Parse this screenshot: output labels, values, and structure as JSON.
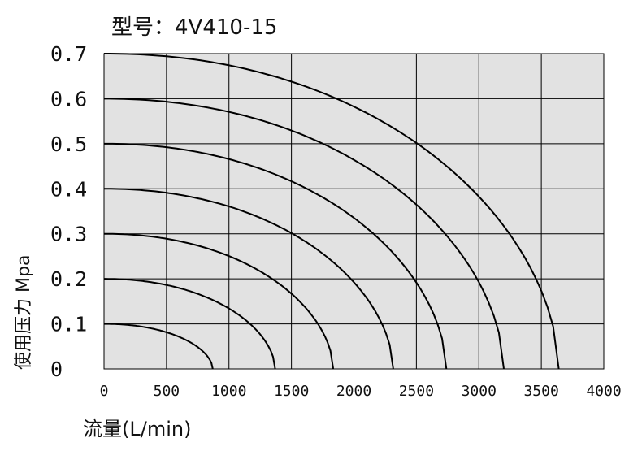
{
  "chart_data": {
    "type": "line",
    "title": "型号：4V410-15",
    "xlabel": "流量(L/min)",
    "ylabel": "使用压力 Mpa",
    "xlim": [
      0,
      4000
    ],
    "ylim": [
      0,
      0.7
    ],
    "x_ticks": [
      "0",
      "500",
      "1000",
      "1500",
      "2000",
      "2500",
      "3000",
      "3500",
      "4000"
    ],
    "y_ticks": [
      "0",
      "0.1",
      "0.2",
      "0.3",
      "0.4",
      "0.5",
      "0.6",
      "0.7"
    ],
    "grid": true,
    "plot_background": "#e2e2e2",
    "line_color": "#000000",
    "series": [
      {
        "points": [
          [
            0,
            0.1
          ],
          [
            870,
            0
          ]
        ]
      },
      {
        "points": [
          [
            0,
            0.2
          ],
          [
            1370,
            0
          ]
        ]
      },
      {
        "points": [
          [
            0,
            0.3
          ],
          [
            1835,
            0
          ]
        ]
      },
      {
        "points": [
          [
            0,
            0.4
          ],
          [
            2315,
            0
          ]
        ]
      },
      {
        "points": [
          [
            0,
            0.5
          ],
          [
            2740,
            0
          ]
        ]
      },
      {
        "points": [
          [
            0,
            0.6
          ],
          [
            3200,
            0
          ]
        ]
      },
      {
        "points": [
          [
            0,
            0.7
          ],
          [
            3640,
            0
          ]
        ]
      }
    ]
  }
}
